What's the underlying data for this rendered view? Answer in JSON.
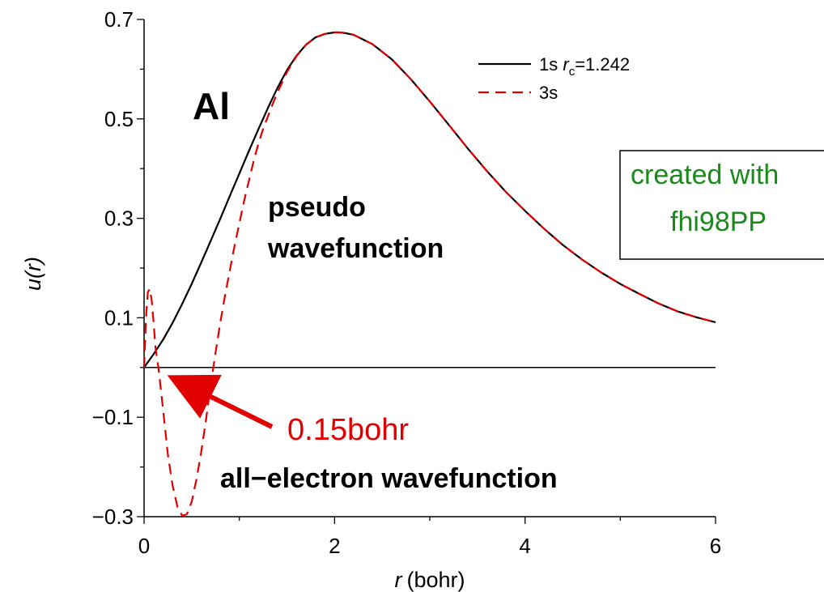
{
  "chart_data": {
    "type": "line",
    "xlabel": "(bohr)",
    "xlabel_var": "r",
    "ylabel": "u(r)",
    "xlim": [
      0,
      6
    ],
    "ylim": [
      -0.3,
      0.7
    ],
    "xticks": [
      "0",
      "2",
      "4",
      "6"
    ],
    "yticks": [
      "0.7",
      "0.5",
      "0.3",
      "0.1",
      "−0.1",
      "−0.3"
    ],
    "grid": false,
    "legend_position": "top-right",
    "legend": [
      {
        "prefix": "1s ",
        "var": "r",
        "sub": "c",
        "suffix": "=1.242",
        "style": "solid",
        "color": "#000000"
      },
      {
        "prefix": "3s",
        "var": "",
        "sub": "",
        "suffix": "",
        "style": "dashed",
        "color": "#e00000"
      }
    ],
    "series": [
      {
        "style": "solid",
        "color": "#000000",
        "x": [
          0,
          0.1,
          0.2,
          0.3,
          0.4,
          0.5,
          0.6,
          0.7,
          0.8,
          0.9,
          1.0,
          1.1,
          1.2,
          1.3,
          1.4,
          1.5,
          1.6,
          1.7,
          1.8,
          1.9,
          2.0,
          2.05,
          2.1,
          2.2,
          2.4,
          2.6,
          2.8,
          3.0,
          3.2,
          3.4,
          3.6,
          3.8,
          4.0,
          4.2,
          4.4,
          4.6,
          4.8,
          5.0,
          5.2,
          5.4,
          5.6,
          5.8,
          6.0
        ],
        "y": [
          0.0,
          0.027,
          0.056,
          0.09,
          0.128,
          0.168,
          0.211,
          0.255,
          0.299,
          0.345,
          0.39,
          0.435,
          0.479,
          0.522,
          0.562,
          0.598,
          0.627,
          0.649,
          0.664,
          0.671,
          0.674,
          0.674,
          0.673,
          0.669,
          0.65,
          0.62,
          0.58,
          0.535,
          0.488,
          0.44,
          0.395,
          0.353,
          0.315,
          0.279,
          0.246,
          0.217,
          0.191,
          0.168,
          0.148,
          0.129,
          0.113,
          0.101,
          0.091
        ]
      },
      {
        "style": "dashed",
        "color": "#e00000",
        "x": [
          0,
          0.02,
          0.04,
          0.06,
          0.08,
          0.1,
          0.12,
          0.15,
          0.2,
          0.25,
          0.3,
          0.35,
          0.4,
          0.45,
          0.5,
          0.55,
          0.6,
          0.65,
          0.7,
          0.75,
          0.8,
          0.85,
          0.9,
          0.95,
          1.0,
          1.05,
          1.1,
          1.15,
          1.2,
          1.25,
          1.3,
          1.35,
          1.4,
          1.5,
          1.6,
          1.7,
          1.8,
          1.9,
          2.0,
          2.05,
          2.1,
          2.2,
          2.4,
          2.6,
          2.8,
          3.0,
          3.2,
          3.4,
          3.6,
          3.8,
          4.0,
          4.2,
          4.4,
          4.6,
          4.8,
          5.0,
          5.2,
          5.4,
          5.6,
          5.8,
          6.0
        ],
        "y": [
          0.0,
          0.1,
          0.152,
          0.158,
          0.135,
          0.09,
          0.04,
          0.0,
          -0.085,
          -0.175,
          -0.238,
          -0.28,
          -0.298,
          -0.295,
          -0.27,
          -0.225,
          -0.17,
          -0.105,
          -0.035,
          0.03,
          0.09,
          0.145,
          0.195,
          0.245,
          0.29,
          0.335,
          0.375,
          0.415,
          0.45,
          0.48,
          0.505,
          0.53,
          0.553,
          0.594,
          0.626,
          0.649,
          0.664,
          0.671,
          0.674,
          0.674,
          0.673,
          0.669,
          0.65,
          0.62,
          0.58,
          0.535,
          0.488,
          0.44,
          0.395,
          0.353,
          0.315,
          0.279,
          0.246,
          0.217,
          0.191,
          0.168,
          0.148,
          0.129,
          0.113,
          0.101,
          0.091
        ]
      }
    ],
    "annotations": {
      "element": "Al",
      "pseudo_line1": "pseudo",
      "pseudo_line2": "wavefunction",
      "cutoff_label": "0.15bohr",
      "allelectron_label": "all−electron wavefunction",
      "cutoff_x": 0.15
    },
    "credit": {
      "line1": "created with",
      "line2": "fhi98PP"
    }
  }
}
